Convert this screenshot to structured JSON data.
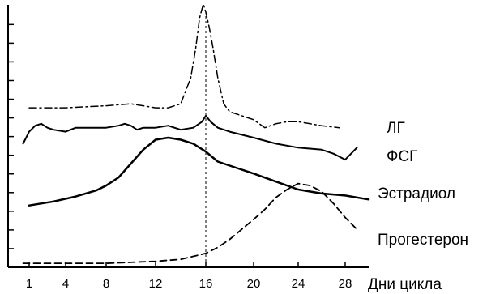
{
  "chart_data": {
    "type": "line",
    "title": "",
    "xlabel": "Дни цикла",
    "ylabel": "",
    "xlim": [
      0,
      31
    ],
    "ylim": [
      0,
      13
    ],
    "x_ticks": [
      1,
      4,
      8,
      12,
      16,
      20,
      24,
      28
    ],
    "x_tick_labels": [
      "1",
      "4",
      "8",
      "12",
      "16",
      "20",
      "24",
      "28"
    ],
    "y_ticks": [
      1,
      2,
      3,
      4,
      5,
      6,
      7,
      8,
      9,
      10,
      11,
      12,
      13
    ],
    "grid": false,
    "reference_line_x": 16,
    "series": [
      {
        "name": "ЛГ",
        "style": "dashdot",
        "x": [
          1,
          4,
          8,
          10,
          12,
          13,
          14,
          14.8,
          15.2,
          15.5,
          15.8,
          16,
          16.3,
          16.6,
          17,
          17.5,
          18,
          19,
          20,
          21,
          22,
          23,
          24,
          26,
          27.5
        ],
        "y": [
          8.0,
          8.0,
          8.1,
          8.2,
          8.0,
          8.0,
          8.2,
          9.5,
          11.0,
          12.5,
          13.2,
          12.8,
          12.0,
          11.0,
          9.5,
          8.2,
          7.8,
          7.6,
          7.4,
          7.0,
          7.2,
          7.3,
          7.3,
          7.1,
          7.0
        ]
      },
      {
        "name": "ФСГ",
        "style": "solid",
        "x": [
          0.5,
          1,
          1.5,
          2,
          2.5,
          3,
          4,
          5,
          6,
          7,
          8,
          9,
          9.5,
          10,
          10.5,
          11,
          12,
          13,
          14,
          15,
          15.7,
          16,
          16.4,
          17,
          18,
          20,
          22,
          24,
          26,
          27,
          28,
          29
        ],
        "y": [
          6.2,
          6.8,
          7.1,
          7.2,
          7.0,
          6.9,
          6.8,
          7.0,
          7.0,
          7.0,
          7.0,
          7.1,
          7.2,
          7.1,
          6.9,
          7.0,
          7.0,
          7.1,
          6.9,
          7.0,
          7.3,
          7.6,
          7.3,
          7.0,
          6.8,
          6.5,
          6.2,
          6.0,
          5.9,
          5.7,
          5.4,
          6.0
        ]
      },
      {
        "name": "Эстрадиол",
        "style": "solid-bold",
        "x": [
          1,
          3,
          5,
          7,
          8,
          9,
          10,
          11,
          12,
          13,
          14,
          15,
          16,
          17,
          18,
          20,
          22,
          24,
          26,
          28,
          30
        ],
        "y": [
          3.1,
          3.3,
          3.55,
          3.85,
          4.1,
          4.5,
          5.2,
          5.9,
          6.4,
          6.5,
          6.4,
          6.2,
          5.8,
          5.3,
          5.1,
          4.7,
          4.3,
          3.9,
          3.7,
          3.6,
          3.4
        ]
      },
      {
        "name": "Прогестерон",
        "style": "dashed",
        "x": [
          0.5,
          4,
          8,
          12,
          14,
          16,
          17,
          18,
          19,
          20,
          21,
          22,
          23,
          24,
          25,
          26,
          27,
          28,
          29
        ],
        "y": [
          0.2,
          0.2,
          0.2,
          0.3,
          0.4,
          0.7,
          1.0,
          1.4,
          1.9,
          2.4,
          2.9,
          3.5,
          3.9,
          4.2,
          4.1,
          3.8,
          3.2,
          2.5,
          1.9
        ]
      }
    ]
  }
}
